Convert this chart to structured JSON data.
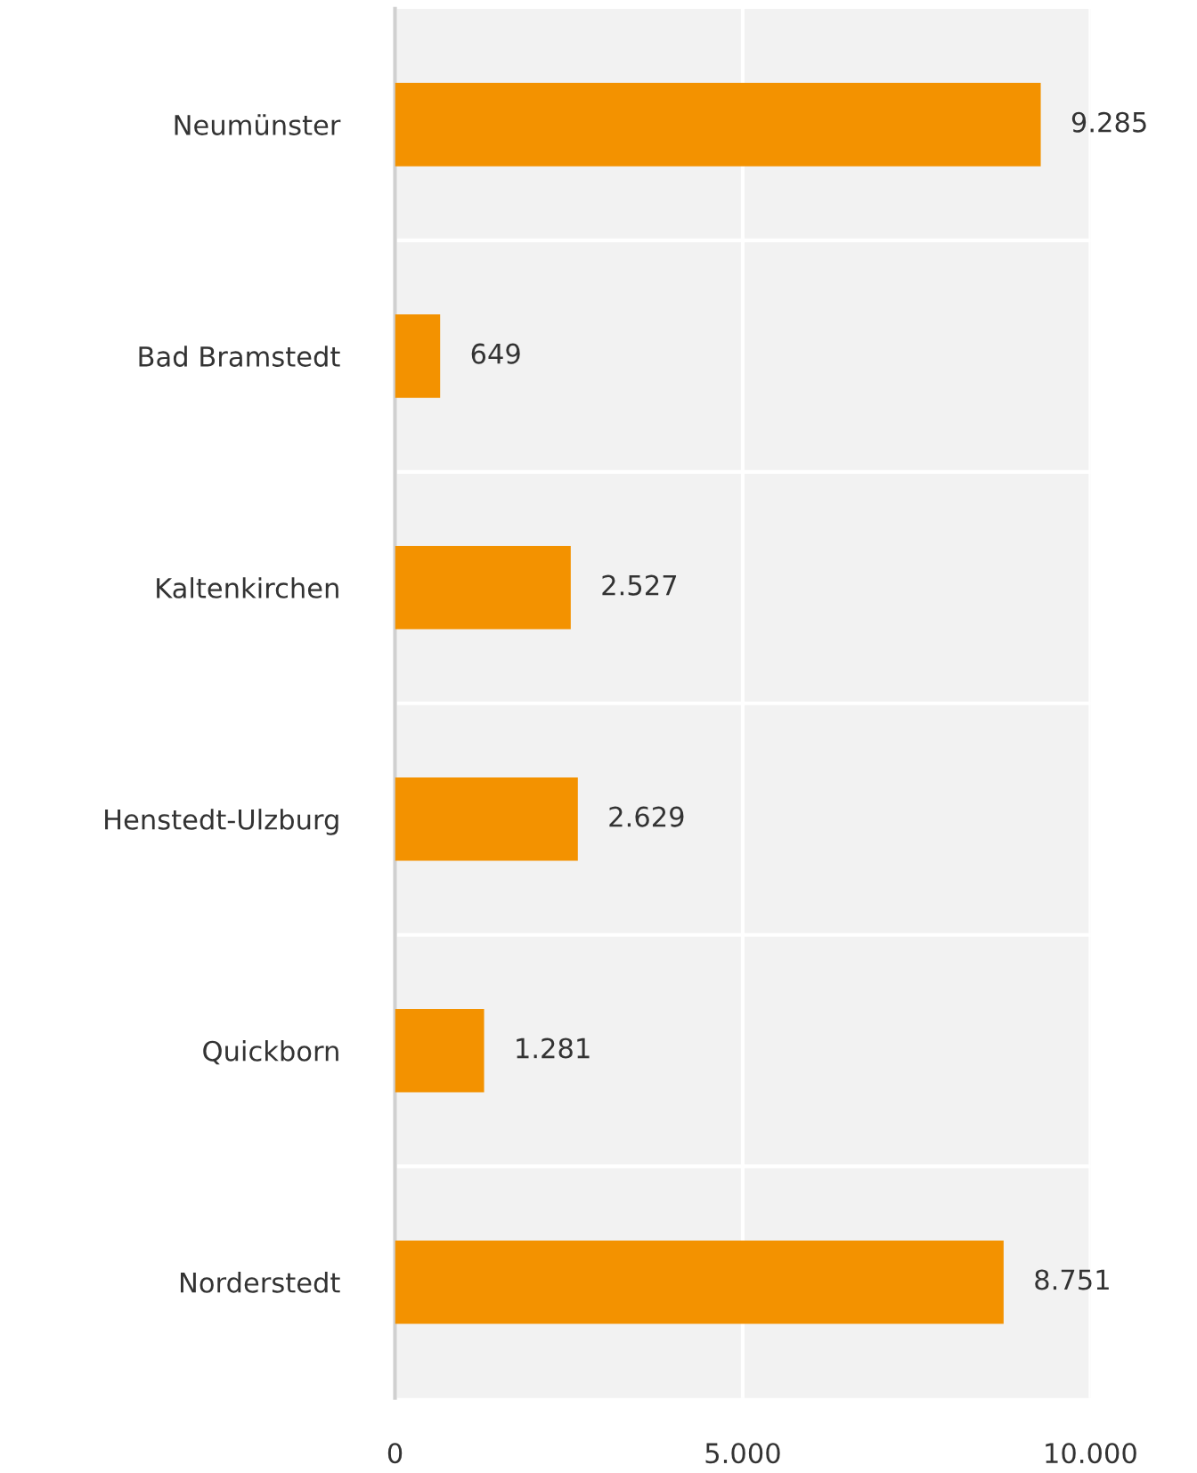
{
  "chart_data": {
    "type": "bar",
    "orientation": "horizontal",
    "categories": [
      "Neumünster",
      "Bad Bramstedt",
      "Kaltenkirchen",
      "Henstedt-Ulzburg",
      "Quickborn",
      "Norderstedt"
    ],
    "values": [
      9285,
      649,
      2527,
      2629,
      1281,
      8751
    ],
    "value_labels": [
      "9.285",
      "649",
      "2.527",
      "2.629",
      "1.281",
      "8.751"
    ],
    "color": "#f39200",
    "xlim": [
      0,
      10000
    ],
    "xticks": [
      0,
      {
        "value": 5000,
        "label": "5.000"
      },
      {
        "value": 10000,
        "label": "10.000"
      }
    ],
    "grid": true
  }
}
